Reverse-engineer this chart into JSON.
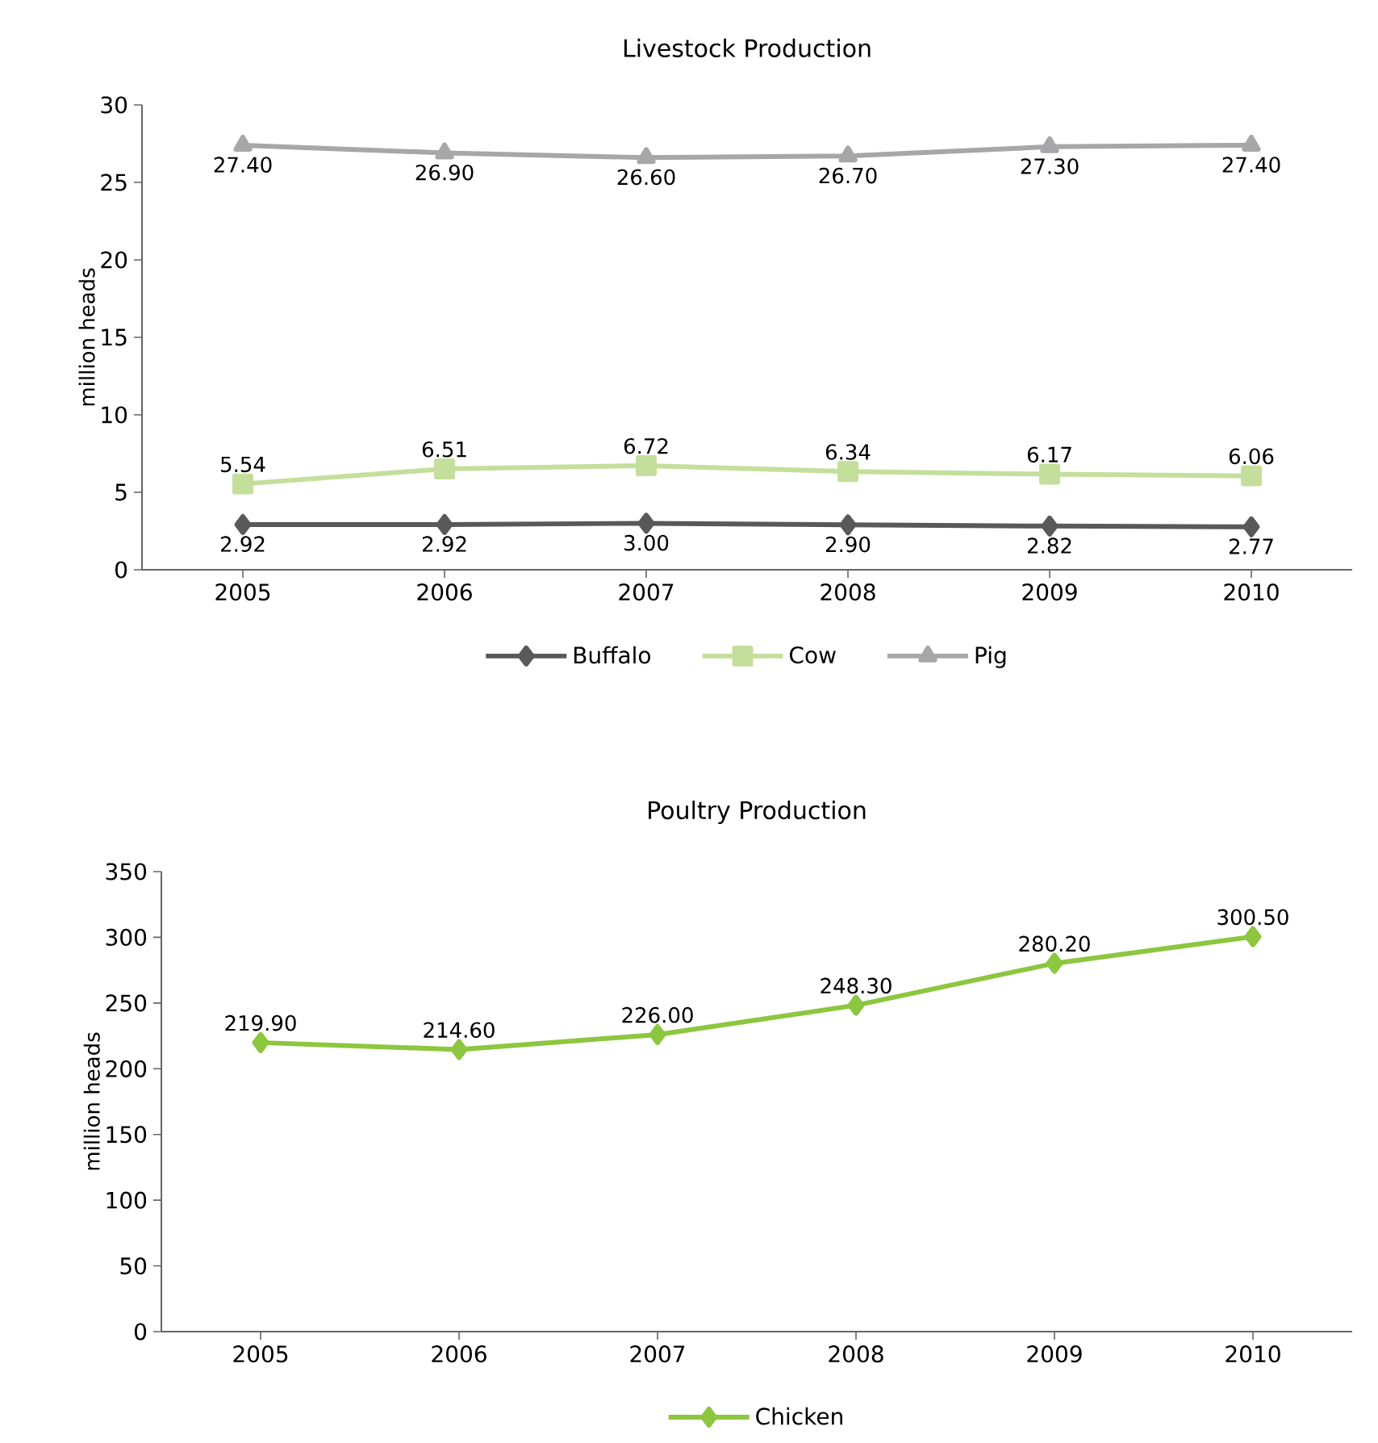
{
  "chart_data": [
    {
      "type": "line",
      "title": "Livestock Production",
      "ylabel": "million heads",
      "categories": [
        "2005",
        "2006",
        "2007",
        "2008",
        "2009",
        "2010"
      ],
      "ylim": [
        0,
        30
      ],
      "yticks": [
        0,
        5,
        10,
        15,
        20,
        25,
        30
      ],
      "legend": "bottom",
      "grid": false,
      "series": [
        {
          "name": "Buffalo",
          "color": "#595959",
          "marker": "diamond",
          "values": [
            2.92,
            2.92,
            3.0,
            2.9,
            2.82,
            2.77
          ],
          "value_labels": [
            "2.92",
            "2.92",
            "3.00",
            "2.90",
            "2.82",
            "2.77"
          ]
        },
        {
          "name": "Cow",
          "color": "#c4df9b",
          "marker": "square",
          "values": [
            5.54,
            6.51,
            6.72,
            6.34,
            6.17,
            6.06
          ],
          "value_labels": [
            "5.54",
            "6.51",
            "6.72",
            "6.34",
            "6.17",
            "6.06"
          ]
        },
        {
          "name": "Pig",
          "color": "#a7a7a9",
          "marker": "triangle",
          "values": [
            27.4,
            26.9,
            26.6,
            26.7,
            27.3,
            27.4
          ],
          "value_labels": [
            "27.40",
            "26.90",
            "26.60",
            "26.70",
            "27.30",
            "27.40"
          ]
        }
      ]
    },
    {
      "type": "line",
      "title": "Poultry Production",
      "ylabel": "million heads",
      "categories": [
        "2005",
        "2006",
        "2007",
        "2008",
        "2009",
        "2010"
      ],
      "ylim": [
        0,
        350
      ],
      "yticks": [
        0,
        50,
        100,
        150,
        200,
        250,
        300,
        350
      ],
      "legend": "bottom",
      "grid": false,
      "series": [
        {
          "name": "Chicken",
          "color": "#8dc63f",
          "marker": "diamond",
          "values": [
            219.9,
            214.6,
            226.0,
            248.3,
            280.2,
            300.5
          ],
          "value_labels": [
            "219.90",
            "214.60",
            "226.00",
            "248.30",
            "280.20",
            "300.50"
          ]
        }
      ]
    }
  ]
}
